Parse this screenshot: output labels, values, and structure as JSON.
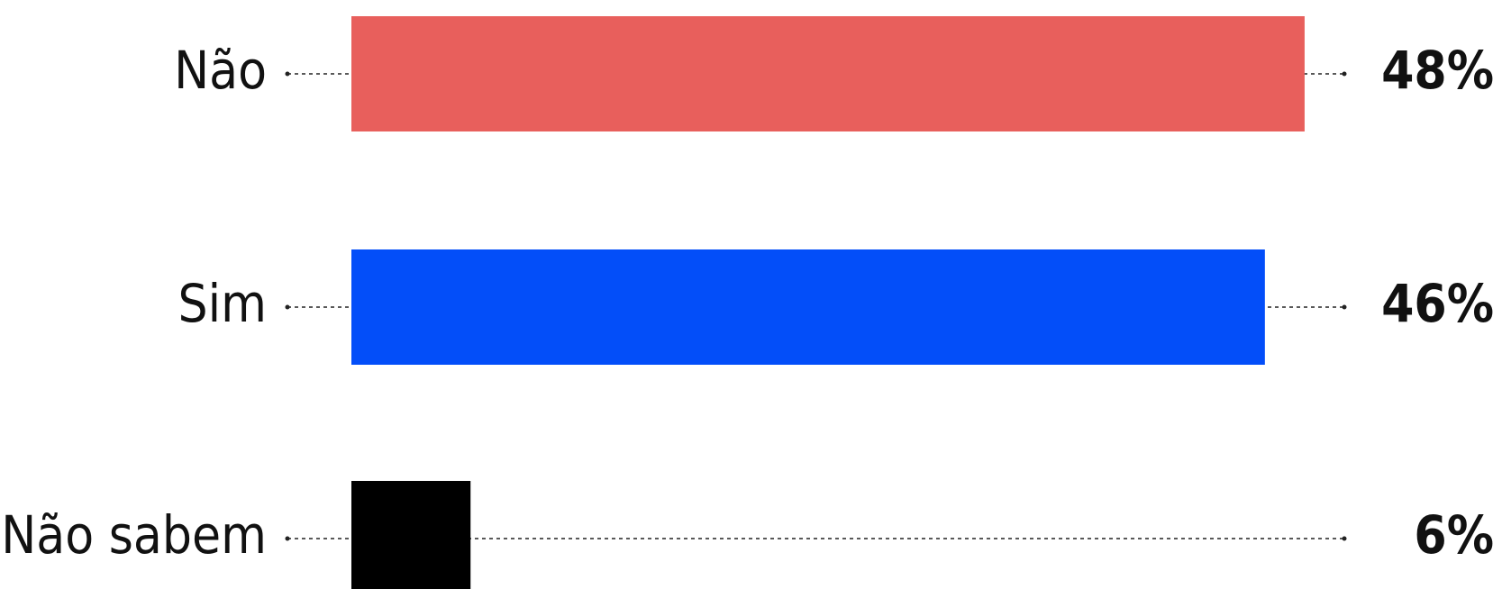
{
  "chart_data": {
    "type": "bar",
    "orientation": "horizontal",
    "categories": [
      "Não",
      "Sim",
      "Não sabem"
    ],
    "values": [
      48,
      46,
      6
    ],
    "value_labels": [
      "48%",
      "46%",
      "6%"
    ],
    "colors": [
      "#e85f5c",
      "#034ef9",
      "#000000"
    ],
    "xlim": [
      0,
      50
    ]
  }
}
